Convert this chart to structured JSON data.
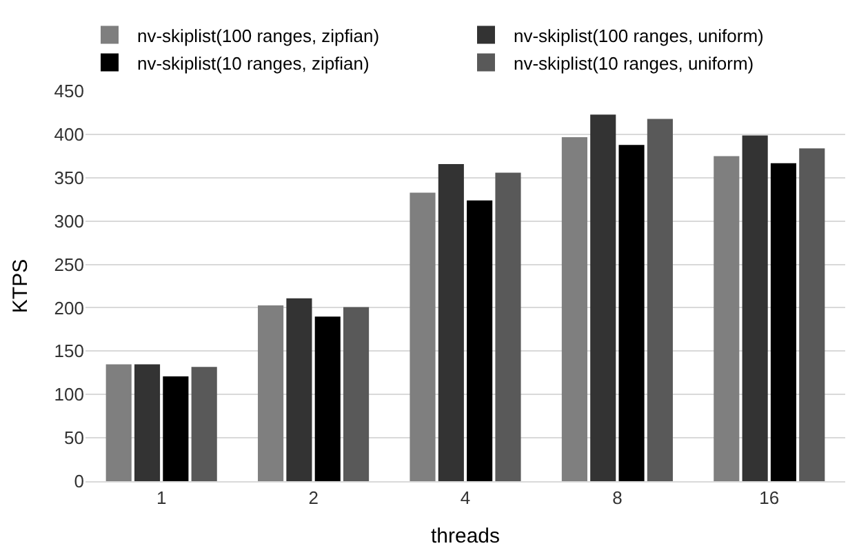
{
  "chart_data": {
    "type": "bar",
    "xlabel": "threads",
    "ylabel": "KTPS",
    "categories": [
      "1",
      "2",
      "4",
      "8",
      "16"
    ],
    "series": [
      {
        "name": "nv-skiplist(100 ranges, zipfian)",
        "color": "#7f7f7f",
        "values": [
          134,
          202,
          332,
          396,
          374
        ]
      },
      {
        "name": "nv-skiplist(100 ranges, uniform)",
        "color": "#333333",
        "values": [
          134,
          210,
          365,
          422,
          398
        ]
      },
      {
        "name": "nv-skiplist(10 ranges, zipfian)",
        "color": "#000000",
        "values": [
          120,
          189,
          323,
          387,
          366
        ]
      },
      {
        "name": "nv-skiplist(10 ranges, uniform)",
        "color": "#595959",
        "values": [
          131,
          200,
          355,
          417,
          383
        ]
      }
    ],
    "ylim": [
      0,
      450
    ],
    "yticks": [
      0,
      50,
      100,
      150,
      200,
      250,
      300,
      350,
      400,
      450
    ],
    "grid": "y",
    "legend": "top"
  }
}
